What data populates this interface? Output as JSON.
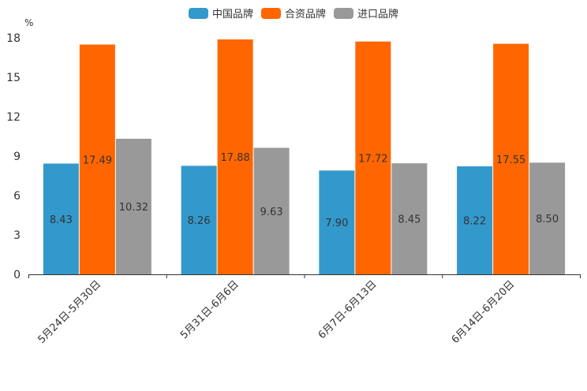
{
  "chart_data": {
    "type": "bar",
    "title": "",
    "ylabel": "%",
    "xlabel": "",
    "ylim": [
      0,
      18
    ],
    "yticks": [
      0,
      3,
      6,
      9,
      12,
      15,
      18
    ],
    "ytick_labels": [
      "0",
      "3",
      "6",
      "9",
      "12",
      "15",
      "18"
    ],
    "categories": [
      "5月24日-5月30日",
      "5月31日-6月6日",
      "6月7日-6月13日",
      "6月14日-6月20日"
    ],
    "series": [
      {
        "name": "中国品牌",
        "color": "#3399cc",
        "values": [
          8.43,
          8.26,
          7.9,
          8.22
        ],
        "labels": [
          "8.43",
          "8.26",
          "7.90",
          "8.22"
        ]
      },
      {
        "name": "合资品牌",
        "color": "#ff6600",
        "values": [
          17.49,
          17.88,
          17.72,
          17.55
        ],
        "labels": [
          "17.49",
          "17.88",
          "17.72",
          "17.55"
        ]
      },
      {
        "name": "进口品牌",
        "color": "#999999",
        "values": [
          10.32,
          9.63,
          8.45,
          8.5
        ],
        "labels": [
          "10.32",
          "9.63",
          "8.45",
          "8.50"
        ]
      }
    ],
    "legend_position": "top-center",
    "grid": false
  }
}
